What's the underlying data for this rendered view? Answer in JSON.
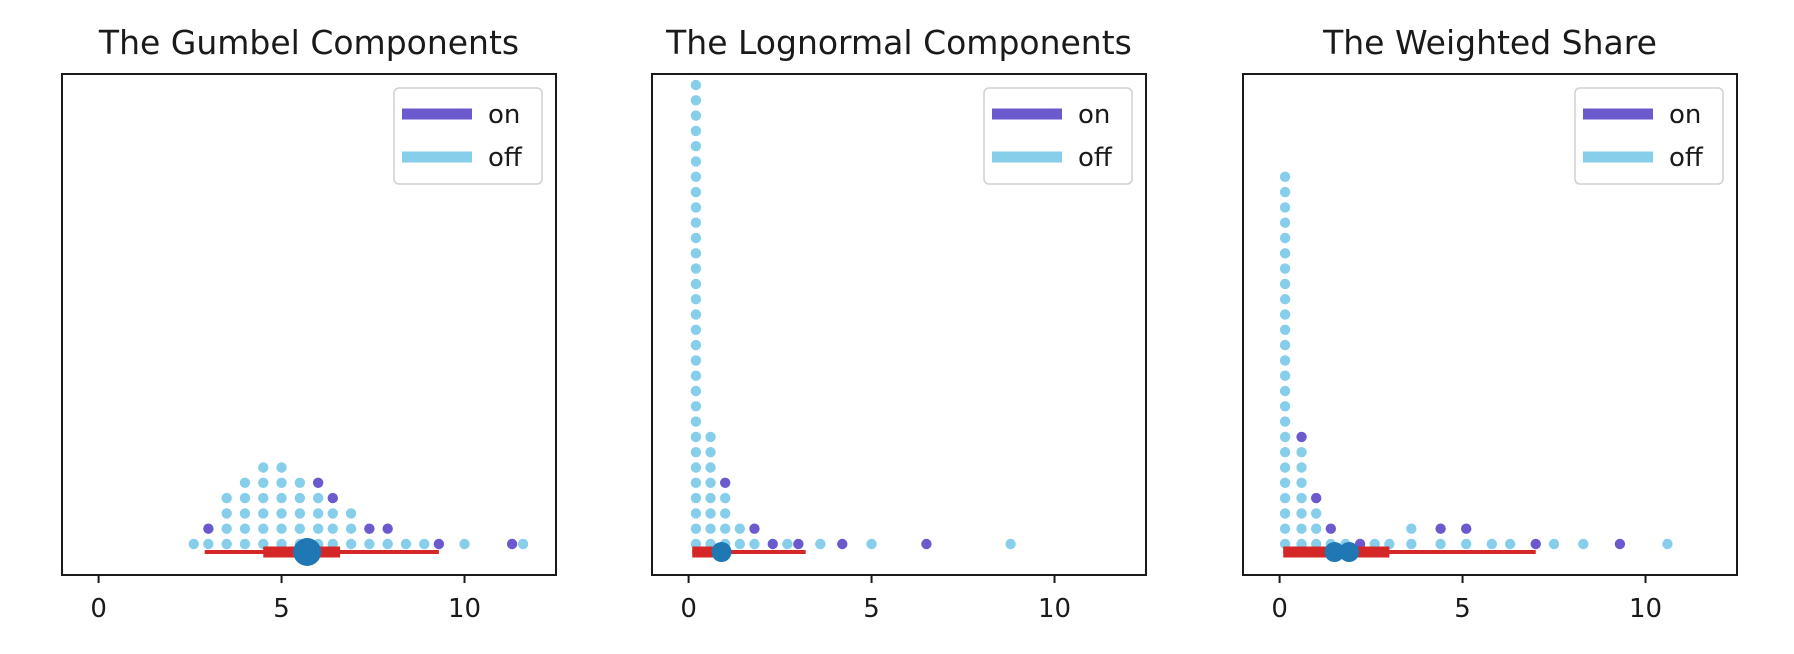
{
  "colors": {
    "on": "#6a5acd",
    "off": "#87ceeb",
    "interval": "#d62728",
    "point_estimate": "#1f77b4",
    "axes": "#1a1a1a"
  },
  "chart_data": [
    {
      "type": "scatter",
      "subtype": "dot plot with point estimate and interval",
      "title": "The Gumbel Components",
      "xlim": [
        -1,
        12.5
      ],
      "xticks": [
        0,
        5,
        10
      ],
      "yaxis_visible": false,
      "legend": {
        "position": "top-right",
        "entries": [
          "on",
          "off"
        ]
      },
      "dot_stacks": [
        {
          "x": 2.6,
          "count": 1,
          "group": "off"
        },
        {
          "x": 3.0,
          "count": 2,
          "group": "mixed"
        },
        {
          "x": 3.5,
          "count": 4,
          "group": "off"
        },
        {
          "x": 4.0,
          "count": 5,
          "group": "off"
        },
        {
          "x": 4.5,
          "count": 6,
          "group": "off"
        },
        {
          "x": 5.0,
          "count": 6,
          "group": "off"
        },
        {
          "x": 5.5,
          "count": 5,
          "group": "off"
        },
        {
          "x": 6.0,
          "count": 5,
          "group": "mixed"
        },
        {
          "x": 6.4,
          "count": 4,
          "group": "mixed"
        },
        {
          "x": 6.9,
          "count": 3,
          "group": "off"
        },
        {
          "x": 7.4,
          "count": 2,
          "group": "mixed"
        },
        {
          "x": 7.9,
          "count": 2,
          "group": "mixed"
        },
        {
          "x": 8.4,
          "count": 1,
          "group": "off"
        },
        {
          "x": 8.9,
          "count": 1,
          "group": "off"
        },
        {
          "x": 9.3,
          "count": 1,
          "group": "on"
        },
        {
          "x": 10.0,
          "count": 1,
          "group": "off"
        },
        {
          "x": 11.3,
          "count": 1,
          "group": "on"
        },
        {
          "x": 11.6,
          "count": 1,
          "group": "off"
        }
      ],
      "point_estimate": 5.7,
      "interval_inner": [
        4.5,
        6.6
      ],
      "interval_outer": [
        2.9,
        9.3
      ]
    },
    {
      "type": "scatter",
      "subtype": "dot plot with point estimate and interval",
      "title": "The Lognormal Components",
      "xlim": [
        -1,
        12.5
      ],
      "xticks": [
        0,
        5,
        10
      ],
      "yaxis_visible": false,
      "legend": {
        "position": "top-right",
        "entries": [
          "on",
          "off"
        ]
      },
      "dot_stacks": [
        {
          "x": 0.2,
          "count": 31,
          "group": "off"
        },
        {
          "x": 0.6,
          "count": 8,
          "group": "off"
        },
        {
          "x": 1.0,
          "count": 5,
          "group": "mixed"
        },
        {
          "x": 1.4,
          "count": 2,
          "group": "off"
        },
        {
          "x": 1.8,
          "count": 2,
          "group": "mixed"
        },
        {
          "x": 2.3,
          "count": 1,
          "group": "on"
        },
        {
          "x": 2.7,
          "count": 1,
          "group": "off"
        },
        {
          "x": 3.0,
          "count": 1,
          "group": "on"
        },
        {
          "x": 3.6,
          "count": 1,
          "group": "off"
        },
        {
          "x": 4.2,
          "count": 1,
          "group": "on"
        },
        {
          "x": 5.0,
          "count": 1,
          "group": "off"
        },
        {
          "x": 6.5,
          "count": 1,
          "group": "on"
        },
        {
          "x": 8.8,
          "count": 1,
          "group": "off"
        }
      ],
      "point_estimate": 0.9,
      "interval_inner": [
        0.1,
        1.1
      ],
      "interval_outer": [
        0.1,
        3.2
      ]
    },
    {
      "type": "scatter",
      "subtype": "dot plot with point estimate and interval",
      "title": "The Weighted Share",
      "xlim": [
        -1,
        12.5
      ],
      "xticks": [
        0,
        5,
        10
      ],
      "yaxis_visible": false,
      "legend": {
        "position": "top-right",
        "entries": [
          "on",
          "off"
        ]
      },
      "dot_stacks": [
        {
          "x": 0.15,
          "count": 25,
          "group": "off"
        },
        {
          "x": 0.6,
          "count": 8,
          "group": "mixed"
        },
        {
          "x": 1.0,
          "count": 4,
          "group": "mixed"
        },
        {
          "x": 1.4,
          "count": 2,
          "group": "mixed"
        },
        {
          "x": 1.8,
          "count": 1,
          "group": "off"
        },
        {
          "x": 2.2,
          "count": 1,
          "group": "on"
        },
        {
          "x": 2.6,
          "count": 1,
          "group": "off"
        },
        {
          "x": 3.0,
          "count": 1,
          "group": "off"
        },
        {
          "x": 3.6,
          "count": 2,
          "group": "off"
        },
        {
          "x": 4.4,
          "count": 2,
          "group": "mixed"
        },
        {
          "x": 5.1,
          "count": 2,
          "group": "mixed"
        },
        {
          "x": 5.8,
          "count": 1,
          "group": "off"
        },
        {
          "x": 6.3,
          "count": 1,
          "group": "off"
        },
        {
          "x": 7.0,
          "count": 1,
          "group": "on"
        },
        {
          "x": 7.5,
          "count": 1,
          "group": "off"
        },
        {
          "x": 8.3,
          "count": 1,
          "group": "off"
        },
        {
          "x": 9.3,
          "count": 1,
          "group": "on"
        },
        {
          "x": 10.6,
          "count": 1,
          "group": "off"
        }
      ],
      "point_estimate": 1.5,
      "secondary_point_estimate": 1.9,
      "interval_inner": [
        0.1,
        3.0
      ],
      "interval_outer": [
        0.1,
        7.0
      ]
    }
  ]
}
